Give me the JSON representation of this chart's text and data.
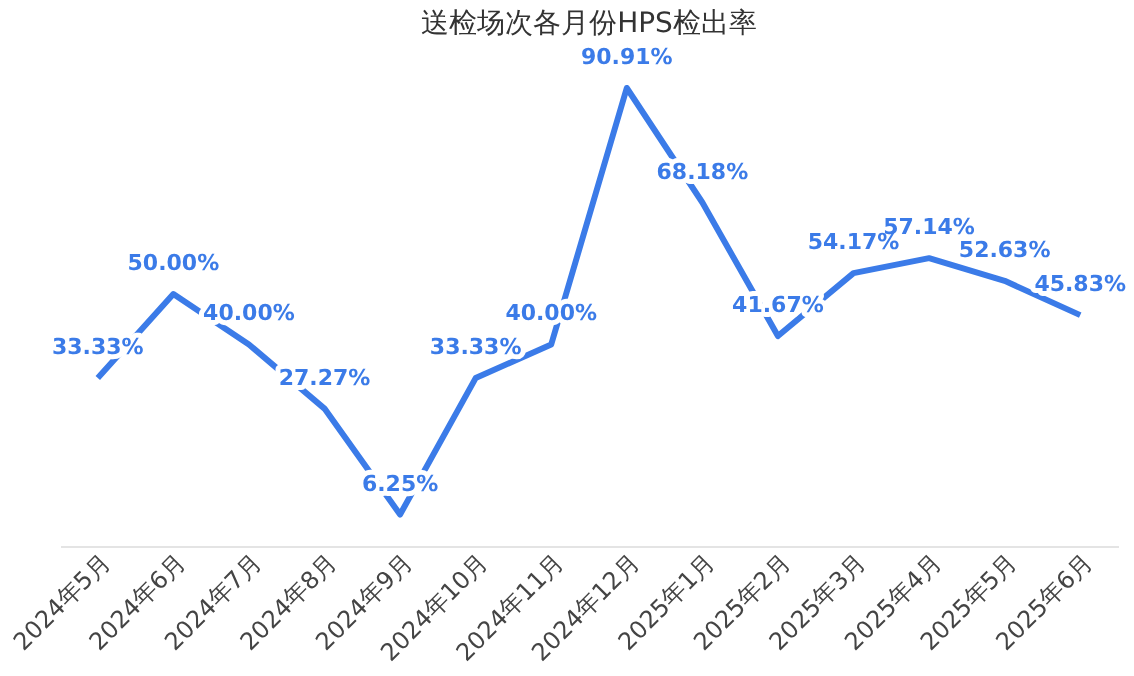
{
  "chart_data": {
    "type": "line",
    "title": "送检场次各月份HPS检出率",
    "categories": [
      "2024年5月",
      "2024年6月",
      "2024年7月",
      "2024年8月",
      "2024年9月",
      "2024年10月",
      "2024年11月",
      "2024年12月",
      "2025年1月",
      "2025年2月",
      "2025年3月",
      "2025年4月",
      "2025年5月",
      "2025年6月"
    ],
    "series": [
      {
        "color": "#3b7be8",
        "values": [
          33.33,
          50.0,
          40.0,
          27.27,
          6.25,
          33.33,
          40.0,
          90.91,
          68.18,
          41.67,
          54.17,
          57.14,
          52.63,
          45.83
        ],
        "value_labels": [
          "33.33%",
          "50.00%",
          "40.00%",
          "27.27%",
          "6.25%",
          "33.33%",
          "40.00%",
          "90.91%",
          "68.18%",
          "41.67%",
          "54.17%",
          "57.14%",
          "52.63%",
          "45.83%"
        ]
      }
    ],
    "grid": false,
    "marker": "none",
    "line_style": "solid"
  }
}
